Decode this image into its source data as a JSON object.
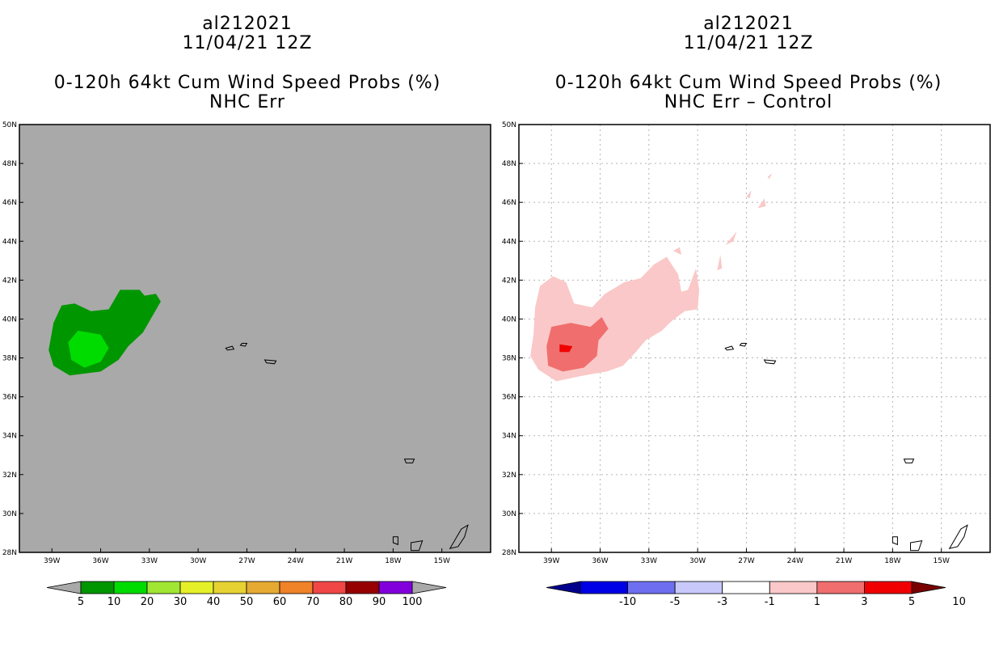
{
  "chart_data": [
    {
      "type": "heatmap",
      "storm_id": "al212021",
      "date": "11/04/21 12Z",
      "title": "0-120h 64kt Cum Wind Speed Probs (%)",
      "subtitle": "NHC Err",
      "xlim": [
        -41,
        -12
      ],
      "ylim": [
        28,
        50
      ],
      "xticks": [
        "39W",
        "36W",
        "33W",
        "30W",
        "27W",
        "24W",
        "21W",
        "18W",
        "15W"
      ],
      "xtick_values": [
        -39,
        -36,
        -33,
        -30,
        -27,
        -24,
        -21,
        -18,
        -15
      ],
      "yticks": [
        "28N",
        "30N",
        "32N",
        "34N",
        "36N",
        "38N",
        "40N",
        "42N",
        "44N",
        "46N",
        "48N",
        "50N"
      ],
      "ytick_values": [
        28,
        30,
        32,
        34,
        36,
        38,
        40,
        42,
        44,
        46,
        48,
        50
      ],
      "grid": false,
      "colorbar": {
        "labels": [
          "5",
          "10",
          "20",
          "30",
          "40",
          "50",
          "60",
          "70",
          "80",
          "90",
          "100"
        ],
        "colors": [
          "#009600",
          "#00dc00",
          "#a0e632",
          "#e6f028",
          "#e6d232",
          "#e6aa32",
          "#f08228",
          "#f04646",
          "#960000",
          "#8200dc"
        ],
        "under_color": "#a9a9a9",
        "over_color": "#a9a9a9"
      },
      "background": "#a9a9a9",
      "regions": [
        {
          "label": "5-10",
          "color": "#009600",
          "polygon": [
            [
              -38.4,
              40.7
            ],
            [
              -37.6,
              40.8
            ],
            [
              -36.6,
              40.4
            ],
            [
              -35.5,
              40.5
            ],
            [
              -34.8,
              41.5
            ],
            [
              -33.6,
              41.5
            ],
            [
              -33.3,
              41.2
            ],
            [
              -32.6,
              41.3
            ],
            [
              -32.3,
              40.9
            ],
            [
              -33.4,
              39.3
            ],
            [
              -34.3,
              38.6
            ],
            [
              -34.9,
              37.9
            ],
            [
              -36.0,
              37.3
            ],
            [
              -37.9,
              37.1
            ],
            [
              -38.9,
              37.6
            ],
            [
              -39.2,
              38.4
            ],
            [
              -38.9,
              39.8
            ]
          ]
        },
        {
          "label": "10-20",
          "color": "#00dc00",
          "polygon": [
            [
              -37.4,
              39.4
            ],
            [
              -36.0,
              39.2
            ],
            [
              -35.5,
              38.5
            ],
            [
              -36.0,
              37.8
            ],
            [
              -37.0,
              37.5
            ],
            [
              -37.8,
              37.9
            ],
            [
              -38.0,
              38.8
            ]
          ]
        }
      ],
      "islands": [
        {
          "name": "azores-flores",
          "polygon": [
            [
              -28.3,
              38.5
            ],
            [
              -27.9,
              38.6
            ],
            [
              -27.8,
              38.45
            ],
            [
              -28.2,
              38.4
            ]
          ]
        },
        {
          "name": "azores-central",
          "polygon": [
            [
              -27.3,
              38.75
            ],
            [
              -27.0,
              38.75
            ],
            [
              -27.1,
              38.6
            ],
            [
              -27.4,
              38.65
            ]
          ]
        },
        {
          "name": "azores-east",
          "polygon": [
            [
              -25.9,
              37.9
            ],
            [
              -25.2,
              37.85
            ],
            [
              -25.3,
              37.7
            ],
            [
              -25.8,
              37.75
            ]
          ]
        },
        {
          "name": "madeira",
          "polygon": [
            [
              -17.3,
              32.8
            ],
            [
              -16.7,
              32.8
            ],
            [
              -16.8,
              32.6
            ],
            [
              -17.2,
              32.6
            ]
          ]
        },
        {
          "name": "canary-west",
          "polygon": [
            [
              -18.0,
              28.8
            ],
            [
              -17.7,
              28.8
            ],
            [
              -17.7,
              28.4
            ],
            [
              -18.0,
              28.5
            ]
          ]
        },
        {
          "name": "canary-central",
          "polygon": [
            [
              -16.9,
              28.5
            ],
            [
              -16.2,
              28.6
            ],
            [
              -16.4,
              28.1
            ],
            [
              -16.9,
              28.1
            ]
          ]
        },
        {
          "name": "canary-east",
          "polygon": [
            [
              -14.5,
              28.2
            ],
            [
              -13.8,
              29.2
            ],
            [
              -13.4,
              29.4
            ],
            [
              -13.6,
              28.8
            ],
            [
              -14.0,
              28.3
            ]
          ]
        }
      ]
    },
    {
      "type": "heatmap",
      "storm_id": "al212021",
      "date": "11/04/21 12Z",
      "title": "0-120h 64kt Cum Wind Speed Probs (%)",
      "subtitle": "NHC Err – Control",
      "xlim": [
        -41,
        -12
      ],
      "ylim": [
        28,
        50
      ],
      "xticks": [
        "39W",
        "36W",
        "33W",
        "30W",
        "27W",
        "24W",
        "21W",
        "18W",
        "15W"
      ],
      "xtick_values": [
        -39,
        -36,
        -33,
        -30,
        -27,
        -24,
        -21,
        -18,
        -15
      ],
      "yticks": [
        "28N",
        "30N",
        "32N",
        "34N",
        "36N",
        "38N",
        "40N",
        "42N",
        "44N",
        "46N",
        "48N",
        "50N"
      ],
      "ytick_values": [
        28,
        30,
        32,
        34,
        36,
        38,
        40,
        42,
        44,
        46,
        48,
        50
      ],
      "grid": true,
      "colorbar": {
        "labels": [
          "-10",
          "-5",
          "-3",
          "-1",
          "1",
          "3",
          "5",
          "10"
        ],
        "colors": [
          "#0000e6",
          "#6e6ef0",
          "#c8c8fa",
          "#ffffff",
          "#fac8c8",
          "#f06e6e",
          "#f00000"
        ],
        "under_color": "#00008c",
        "over_color": "#780000"
      },
      "background": "#ffffff",
      "regions": [
        {
          "label": "1-3",
          "color": "#fac8c8",
          "polygon": [
            [
              -39.7,
              41.7
            ],
            [
              -38.9,
              42.2
            ],
            [
              -38.1,
              41.9
            ],
            [
              -37.6,
              40.8
            ],
            [
              -36.5,
              40.6
            ],
            [
              -35.7,
              41.3
            ],
            [
              -34.5,
              41.9
            ],
            [
              -33.5,
              42.1
            ],
            [
              -32.7,
              42.8
            ],
            [
              -31.9,
              43.2
            ],
            [
              -31.2,
              42.3
            ],
            [
              -31.0,
              41.4
            ],
            [
              -30.6,
              41.5
            ],
            [
              -30.1,
              42.6
            ],
            [
              -29.9,
              41.5
            ],
            [
              -30.0,
              40.5
            ],
            [
              -30.8,
              40.4
            ],
            [
              -31.6,
              39.9
            ],
            [
              -32.2,
              39.4
            ],
            [
              -33.2,
              38.9
            ],
            [
              -33.8,
              38.3
            ],
            [
              -34.6,
              37.6
            ],
            [
              -35.6,
              37.3
            ],
            [
              -37.0,
              37.1
            ],
            [
              -38.7,
              36.8
            ],
            [
              -39.8,
              37.4
            ],
            [
              -40.3,
              38.1
            ],
            [
              -40.1,
              39.2
            ],
            [
              -40.0,
              40.6
            ]
          ]
        },
        {
          "label": "1-3",
          "color": "#fac8c8",
          "polygon": [
            [
              -31.5,
              43.5
            ],
            [
              -31.1,
              43.7
            ],
            [
              -31.0,
              43.3
            ]
          ]
        },
        {
          "label": "1-3",
          "color": "#fac8c8",
          "polygon": [
            [
              -28.3,
              43.8
            ],
            [
              -27.6,
              44.5
            ],
            [
              -27.8,
              44.0
            ]
          ]
        },
        {
          "label": "1-3",
          "color": "#fac8c8",
          "polygon": [
            [
              -26.3,
              45.7
            ],
            [
              -25.9,
              46.2
            ],
            [
              -25.8,
              45.8
            ]
          ]
        },
        {
          "label": "1-3",
          "color": "#fac8c8",
          "polygon": [
            [
              -27.0,
              46.3
            ],
            [
              -26.7,
              46.6
            ],
            [
              -26.8,
              46.2
            ]
          ]
        },
        {
          "label": "1-3",
          "color": "#fac8c8",
          "polygon": [
            [
              -25.7,
              47.3
            ],
            [
              -25.4,
              47.5
            ],
            [
              -25.6,
              47.2
            ]
          ]
        },
        {
          "label": "1-3",
          "color": "#fac8c8",
          "polygon": [
            [
              -28.8,
              42.5
            ],
            [
              -28.6,
              43.3
            ],
            [
              -28.5,
              42.6
            ]
          ]
        },
        {
          "label": "3-5",
          "color": "#f06e6e",
          "polygon": [
            [
              -39.0,
              39.6
            ],
            [
              -37.8,
              39.8
            ],
            [
              -36.6,
              39.6
            ],
            [
              -35.9,
              40.1
            ],
            [
              -35.5,
              39.5
            ],
            [
              -36.1,
              38.9
            ],
            [
              -36.2,
              38.1
            ],
            [
              -37.0,
              37.5
            ],
            [
              -38.3,
              37.3
            ],
            [
              -39.2,
              37.6
            ],
            [
              -39.3,
              38.6
            ]
          ]
        },
        {
          "label": "5-10",
          "color": "#f00000",
          "polygon": [
            [
              -38.5,
              38.7
            ],
            [
              -37.7,
              38.6
            ],
            [
              -37.9,
              38.3
            ],
            [
              -38.5,
              38.3
            ]
          ]
        }
      ],
      "islands": [
        {
          "name": "azores-flores",
          "polygon": [
            [
              -28.3,
              38.5
            ],
            [
              -27.9,
              38.6
            ],
            [
              -27.8,
              38.45
            ],
            [
              -28.2,
              38.4
            ]
          ]
        },
        {
          "name": "azores-central",
          "polygon": [
            [
              -27.3,
              38.75
            ],
            [
              -27.0,
              38.75
            ],
            [
              -27.1,
              38.6
            ],
            [
              -27.4,
              38.65
            ]
          ]
        },
        {
          "name": "azores-east",
          "polygon": [
            [
              -25.9,
              37.9
            ],
            [
              -25.2,
              37.85
            ],
            [
              -25.3,
              37.7
            ],
            [
              -25.8,
              37.75
            ]
          ]
        },
        {
          "name": "madeira",
          "polygon": [
            [
              -17.3,
              32.8
            ],
            [
              -16.7,
              32.8
            ],
            [
              -16.8,
              32.6
            ],
            [
              -17.2,
              32.6
            ]
          ]
        },
        {
          "name": "canary-west",
          "polygon": [
            [
              -18.0,
              28.8
            ],
            [
              -17.7,
              28.8
            ],
            [
              -17.7,
              28.4
            ],
            [
              -18.0,
              28.5
            ]
          ]
        },
        {
          "name": "canary-central",
          "polygon": [
            [
              -16.9,
              28.5
            ],
            [
              -16.2,
              28.6
            ],
            [
              -16.4,
              28.1
            ],
            [
              -16.9,
              28.1
            ]
          ]
        },
        {
          "name": "canary-east",
          "polygon": [
            [
              -14.5,
              28.2
            ],
            [
              -13.8,
              29.2
            ],
            [
              -13.4,
              29.4
            ],
            [
              -13.6,
              28.8
            ],
            [
              -14.0,
              28.3
            ]
          ]
        }
      ]
    }
  ]
}
